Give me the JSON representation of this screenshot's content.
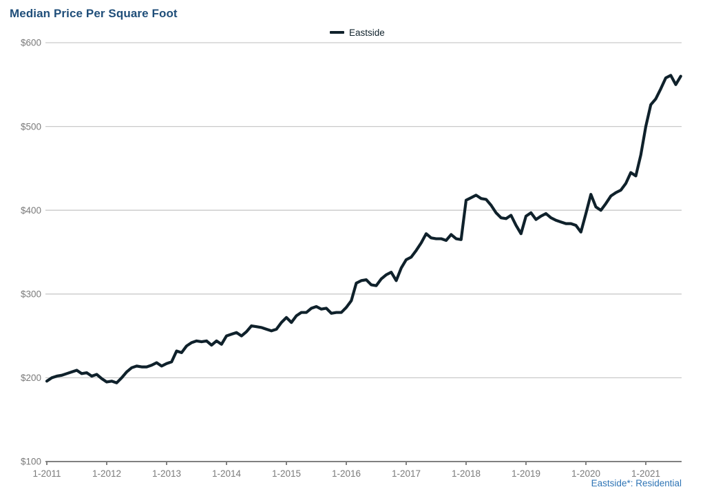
{
  "header": {
    "title": "Median Price Per Square Foot"
  },
  "legend": {
    "series_label": "Eastside"
  },
  "footer": {
    "note": "Eastside*: Residential"
  },
  "colors": {
    "title": "#1F4E79",
    "series_line": "#0F212B",
    "footer_text": "#2E74B5",
    "axis_text": "#7A7A7A",
    "gridline": "#C9C9C9",
    "axis_line": "#808080",
    "background": "#FFFFFF"
  },
  "chart_data": {
    "type": "line",
    "title": "Median Price Per Square Foot",
    "xlabel": "",
    "ylabel": "",
    "y_unit_prefix": "$",
    "ylim": [
      100,
      600
    ],
    "y_ticks": [
      100,
      200,
      300,
      400,
      500,
      600
    ],
    "grid": "horizontal",
    "legend_position": "top-center",
    "x_start": "2011-01",
    "x_frequency": "monthly",
    "x_tick_labels": [
      {
        "label": "1-2011",
        "month": 0
      },
      {
        "label": "1-2012",
        "month": 12
      },
      {
        "label": "1-2013",
        "month": 24
      },
      {
        "label": "1-2014",
        "month": 36
      },
      {
        "label": "1-2015",
        "month": 48
      },
      {
        "label": "1-2016",
        "month": 60
      },
      {
        "label": "1-2017",
        "month": 72
      },
      {
        "label": "1-2018",
        "month": 84
      },
      {
        "label": "1-2019",
        "month": 96
      },
      {
        "label": "1-2020",
        "month": 108
      },
      {
        "label": "1-2021",
        "month": 120
      }
    ],
    "series": [
      {
        "name": "Eastside",
        "color": "#0F212B",
        "values": [
          196,
          200,
          202,
          203,
          205,
          207,
          209,
          205,
          206,
          202,
          204,
          199,
          195,
          196,
          194,
          200,
          207,
          212,
          214,
          213,
          213,
          215,
          218,
          214,
          217,
          219,
          232,
          230,
          238,
          242,
          244,
          243,
          244,
          239,
          244,
          240,
          250,
          252,
          254,
          250,
          255,
          262,
          261,
          260,
          258,
          256,
          258,
          266,
          272,
          266,
          274,
          278,
          278,
          283,
          285,
          282,
          283,
          277,
          278,
          278,
          284,
          292,
          313,
          316,
          317,
          311,
          310,
          318,
          323,
          326,
          316,
          331,
          341,
          344,
          352,
          361,
          372,
          367,
          366,
          366,
          364,
          371,
          366,
          365,
          412,
          415,
          418,
          414,
          413,
          406,
          397,
          391,
          390,
          394,
          382,
          372,
          393,
          397,
          389,
          393,
          396,
          391,
          388,
          386,
          384,
          384,
          382,
          374,
          396,
          419,
          404,
          400,
          408,
          417,
          421,
          424,
          432,
          445,
          441,
          466,
          500,
          526,
          533,
          545,
          558,
          561,
          550,
          560
        ]
      }
    ]
  }
}
